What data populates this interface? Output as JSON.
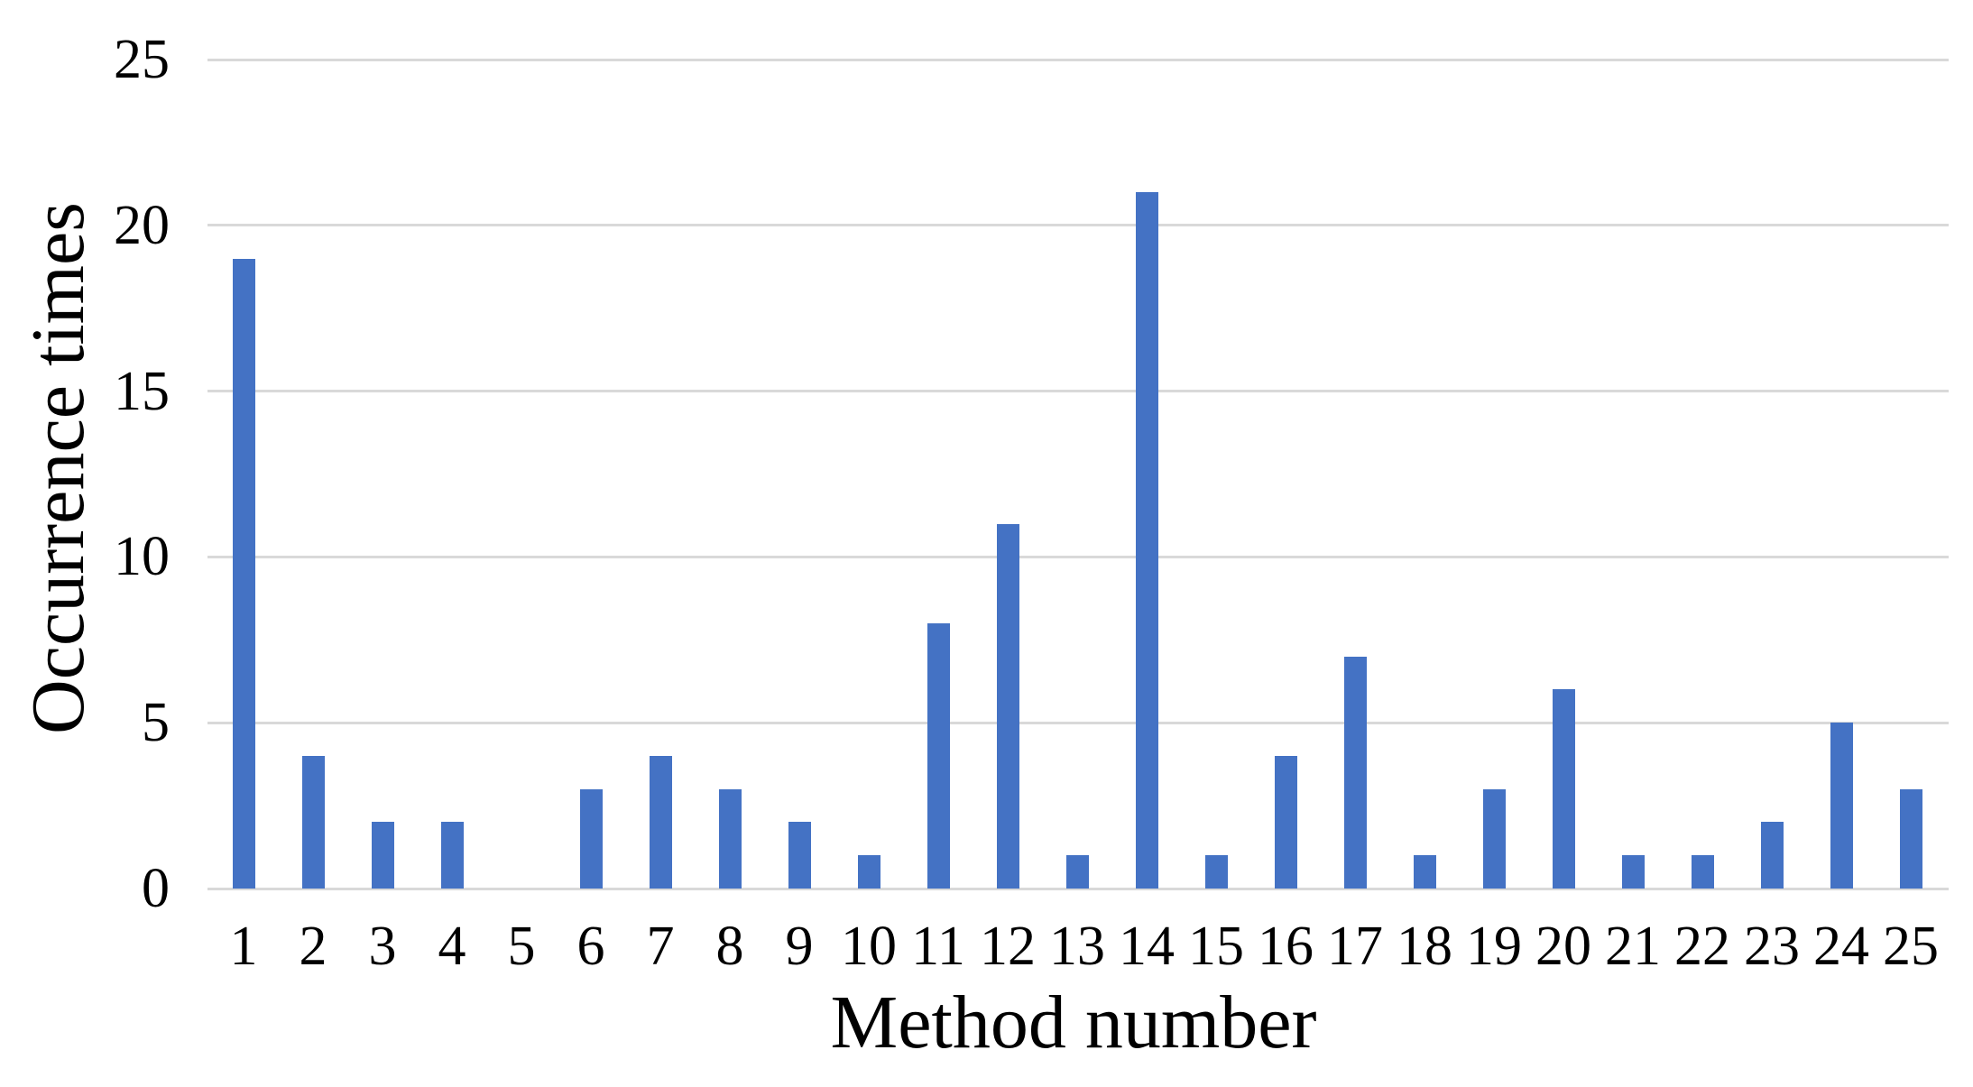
{
  "chart_data": {
    "type": "bar",
    "title": "",
    "xlabel": "Method number",
    "ylabel": "Occurrence times",
    "categories": [
      "1",
      "2",
      "3",
      "4",
      "5",
      "6",
      "7",
      "8",
      "9",
      "10",
      "11",
      "12",
      "13",
      "14",
      "15",
      "16",
      "17",
      "18",
      "19",
      "20",
      "21",
      "22",
      "23",
      "24",
      "25"
    ],
    "values": [
      19,
      4,
      2,
      2,
      0,
      3,
      4,
      3,
      2,
      1,
      8,
      11,
      1,
      21,
      1,
      4,
      7,
      1,
      3,
      6,
      1,
      1,
      2,
      5,
      3
    ],
    "ylim": [
      0,
      25
    ],
    "yticks": [
      0,
      5,
      10,
      15,
      20,
      25
    ],
    "legend": "none",
    "grid": "horizontal",
    "colors": {
      "bar": "#4472C4",
      "gridline": "#D9D9D9",
      "text": "#000000",
      "background": "#FFFFFF"
    }
  }
}
